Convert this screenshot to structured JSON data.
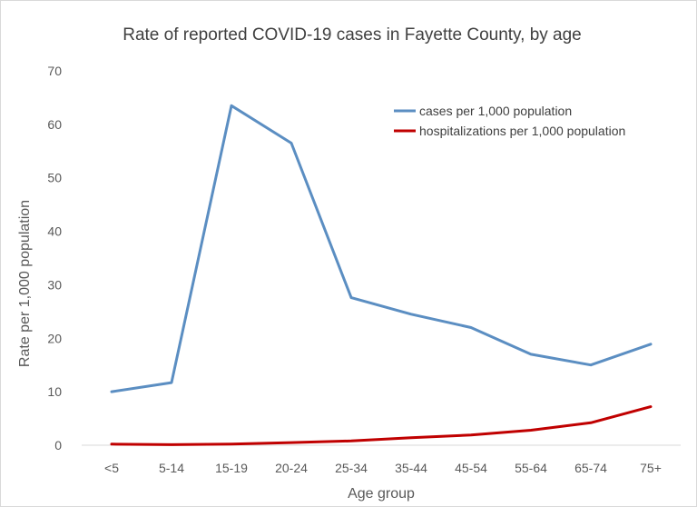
{
  "chart_data": {
    "type": "line",
    "title": "Rate of reported COVID-19 cases in Fayette County, by age",
    "xlabel": "Age group",
    "ylabel": "Rate per 1,000 population",
    "categories": [
      "<5",
      "5-14",
      "15-19",
      "20-24",
      "25-34",
      "35-44",
      "45-54",
      "55-64",
      "65-74",
      "75+"
    ],
    "ylim": [
      0,
      70
    ],
    "yticks": [
      "0",
      "10",
      "20",
      "30",
      "40",
      "50",
      "60",
      "70"
    ],
    "grid": false,
    "legend_position": "top-right",
    "series": [
      {
        "name": "cases per 1,000 population",
        "color": "#5b8ec2",
        "values": [
          10.0,
          11.7,
          63.5,
          56.5,
          27.6,
          24.5,
          22.0,
          17.0,
          15.0,
          18.9
        ]
      },
      {
        "name": "hospitalizations per 1,000 population",
        "color": "#c00000",
        "values": [
          0.2,
          0.1,
          0.2,
          0.5,
          0.8,
          1.4,
          1.9,
          2.8,
          4.2,
          7.2
        ]
      }
    ]
  }
}
